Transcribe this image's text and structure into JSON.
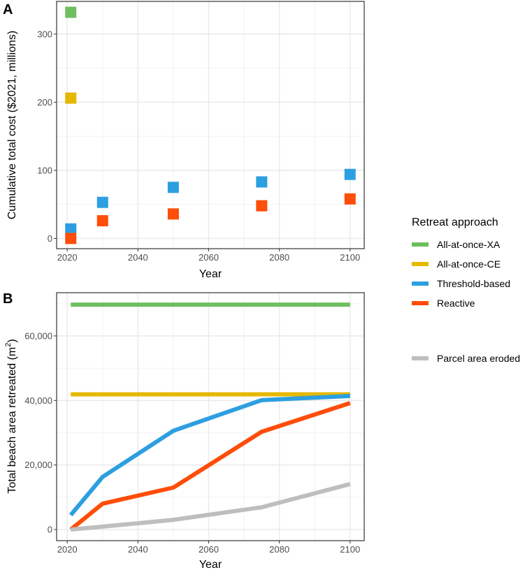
{
  "legend": {
    "title": "Retreat approach",
    "placement": "right",
    "items": [
      {
        "name": "All-at-once-XA",
        "color": "#6DBE5E"
      },
      {
        "name": "All-at-once-CE",
        "color": "#E6B800"
      },
      {
        "name": "Threshold-based",
        "color": "#2D9FE0"
      },
      {
        "name": "Reactive",
        "color": "#FF4D0A"
      }
    ],
    "extra": {
      "name": "Parcel area eroded",
      "color": "#BEBEBE"
    }
  },
  "chart_data": [
    {
      "panel_label": "A",
      "type": "scatter",
      "xlabel": "Year",
      "ylabel": "Cumulative total cost ($2021, millions)",
      "xlim": [
        2017,
        2104
      ],
      "ylim": [
        -15,
        348
      ],
      "xticks": [
        "2020",
        "2040",
        "2060",
        "2080",
        "2100"
      ],
      "yticks": [
        "0",
        "100",
        "200",
        "300"
      ],
      "grid": true,
      "series": [
        {
          "name": "All-at-once-XA",
          "x": [
            2021
          ],
          "y": [
            332
          ]
        },
        {
          "name": "All-at-once-CE",
          "x": [
            2021
          ],
          "y": [
            206
          ]
        },
        {
          "name": "Threshold-based",
          "x": [
            2021,
            2030,
            2050,
            2075,
            2100
          ],
          "y": [
            14,
            53,
            75,
            83,
            94
          ]
        },
        {
          "name": "Reactive",
          "x": [
            2021,
            2030,
            2050,
            2075,
            2100
          ],
          "y": [
            0,
            26,
            36,
            48,
            58
          ]
        }
      ]
    },
    {
      "panel_label": "B",
      "type": "line",
      "xlabel": "Year",
      "ylabel": "Total beach area retreated  (m",
      "ylabel_sup": "2",
      "ylabel_end": ")",
      "xlim": [
        2017,
        2104
      ],
      "ylim": [
        -3450,
        73400
      ],
      "xticks": [
        "2020",
        "2040",
        "2060",
        "2080",
        "2100"
      ],
      "yticks": [
        "0",
        "20,000",
        "40,000",
        "60,000"
      ],
      "grid": true,
      "series": [
        {
          "name": "All-at-once-XA",
          "x": [
            2021,
            2100
          ],
          "y": [
            69700,
            69700
          ]
        },
        {
          "name": "All-at-once-CE",
          "x": [
            2021,
            2100
          ],
          "y": [
            41900,
            41900
          ]
        },
        {
          "name": "Threshold-based",
          "x": [
            2021,
            2030,
            2050,
            2075,
            2100
          ],
          "y": [
            4500,
            16300,
            30600,
            40100,
            41400
          ]
        },
        {
          "name": "Reactive",
          "x": [
            2021,
            2030,
            2050,
            2075,
            2100
          ],
          "y": [
            0,
            8000,
            13000,
            30300,
            39200
          ]
        },
        {
          "name": "Parcel area eroded",
          "x": [
            2021,
            2030,
            2050,
            2075,
            2100
          ],
          "y": [
            0,
            900,
            3000,
            6900,
            14100
          ]
        }
      ]
    }
  ]
}
